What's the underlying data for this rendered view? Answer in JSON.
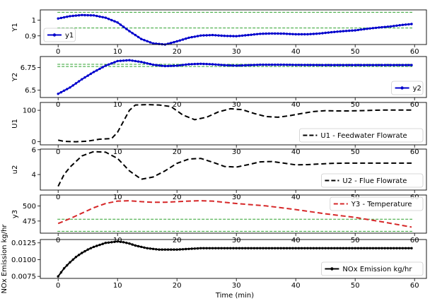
{
  "figure": {
    "xlabel": "Time (min)",
    "x_ticks": [
      0,
      10,
      20,
      30,
      40,
      50,
      60
    ],
    "xlim": [
      -3,
      62
    ]
  },
  "chart_data": [
    {
      "type": "line",
      "ylabel": "Y1",
      "ylim": [
        0.845,
        1.065
      ],
      "y_ticks": [
        0.9,
        1.0
      ],
      "legend": "bottom-left",
      "limits": [
        0.95,
        1.05
      ],
      "limit_color": "#2ca02c",
      "series": [
        {
          "name": "y1",
          "color": "#0000cc",
          "style": "solid-dot",
          "x": [
            0,
            2,
            4,
            6,
            8,
            10,
            12,
            14,
            16,
            18,
            20,
            22,
            24,
            26,
            28,
            30,
            32,
            34,
            36,
            38,
            40,
            42,
            44,
            46,
            48,
            50,
            52,
            54,
            56,
            58,
            59.5
          ],
          "y": [
            1.01,
            1.025,
            1.032,
            1.03,
            1.015,
            0.985,
            0.93,
            0.88,
            0.852,
            0.845,
            0.865,
            0.888,
            0.902,
            0.905,
            0.9,
            0.898,
            0.905,
            0.913,
            0.915,
            0.914,
            0.91,
            0.91,
            0.915,
            0.923,
            0.93,
            0.935,
            0.945,
            0.953,
            0.96,
            0.97,
            0.975
          ]
        }
      ]
    },
    {
      "type": "line",
      "ylabel": "Y2",
      "ylim": [
        6.42,
        6.87
      ],
      "y_ticks": [
        6.5,
        6.75
      ],
      "legend": "bottom-right",
      "limits": [
        6.76,
        6.785
      ],
      "limit_color": "#2ca02c",
      "series": [
        {
          "name": "y2",
          "color": "#0000cc",
          "style": "solid-dot",
          "x": [
            0,
            2,
            4,
            6,
            8,
            10,
            12,
            14,
            16,
            18,
            20,
            22,
            24,
            26,
            28,
            30,
            32,
            34,
            36,
            38,
            40,
            45,
            50,
            55,
            59.5
          ],
          "y": [
            6.46,
            6.53,
            6.62,
            6.7,
            6.77,
            6.82,
            6.83,
            6.81,
            6.78,
            6.765,
            6.77,
            6.785,
            6.79,
            6.785,
            6.775,
            6.77,
            6.775,
            6.78,
            6.78,
            6.78,
            6.778,
            6.776,
            6.776,
            6.776,
            6.776
          ]
        }
      ]
    },
    {
      "type": "line",
      "ylabel": "U1",
      "ylim": [
        -10,
        125
      ],
      "y_ticks": [
        0,
        100
      ],
      "legend": "bottom-right",
      "series": [
        {
          "name": "U1 - Feedwater Flowrate",
          "color": "#000000",
          "style": "dashed",
          "x": [
            0,
            1,
            3,
            5,
            7,
            9,
            10,
            11,
            12,
            13,
            15,
            17,
            19,
            21,
            23,
            25,
            27,
            29,
            31,
            33,
            35,
            37,
            39,
            41,
            43,
            45,
            47,
            49,
            51,
            53,
            55,
            57,
            59.5
          ],
          "y": [
            5,
            1,
            0,
            2,
            8,
            10,
            30,
            65,
            100,
            117,
            118,
            117,
            112,
            85,
            70,
            78,
            95,
            105,
            102,
            90,
            80,
            78,
            83,
            90,
            96,
            99,
            98,
            98,
            99,
            100,
            101,
            101,
            101
          ]
        }
      ]
    },
    {
      "type": "line",
      "ylabel": "u2",
      "ylim": [
        2.75,
        6.05
      ],
      "y_ticks": [
        4,
        6
      ],
      "legend": "bottom-right",
      "series": [
        {
          "name": "U2 - Flue Flowrate",
          "color": "#000000",
          "style": "dashed",
          "x": [
            0,
            1,
            2,
            4,
            6,
            8,
            10,
            12,
            14,
            16,
            18,
            20,
            22,
            24,
            26,
            28,
            30,
            32,
            34,
            36,
            38,
            40,
            42,
            44,
            46,
            48,
            50,
            52,
            54,
            56,
            59.5
          ],
          "y": [
            3.05,
            4.0,
            4.6,
            5.5,
            5.85,
            5.8,
            5.3,
            4.3,
            3.62,
            3.8,
            4.3,
            4.9,
            5.25,
            5.3,
            5.0,
            4.65,
            4.6,
            4.8,
            5.02,
            5.05,
            4.92,
            4.78,
            4.8,
            4.85,
            4.9,
            4.92,
            4.92,
            4.92,
            4.92,
            4.92,
            4.92
          ]
        }
      ]
    },
    {
      "type": "line",
      "ylabel": "y3",
      "ylim": [
        455,
        518
      ],
      "y_ticks": [
        475,
        500
      ],
      "legend": "top-right",
      "limits": [
        458,
        478
      ],
      "limit_color": "#2ca02c",
      "series": [
        {
          "name": "Y3 - Temperature",
          "color": "#d62728",
          "style": "dashed",
          "x": [
            0,
            2,
            4,
            6,
            8,
            10,
            12,
            14,
            16,
            18,
            20,
            22,
            24,
            26,
            28,
            30,
            35,
            40,
            45,
            50,
            55,
            59.5
          ],
          "y": [
            471,
            479,
            488,
            497,
            504,
            508,
            508.5,
            507,
            506,
            506,
            507,
            508,
            508.5,
            508,
            506,
            504,
            500,
            494,
            487,
            481,
            473,
            465
          ]
        }
      ]
    },
    {
      "type": "line",
      "ylabel": "NOx Emission kg/hr",
      "ylim": [
        0.0072,
        0.013
      ],
      "y_ticks": [
        0.0075,
        0.01,
        0.0125
      ],
      "y_tick_labels": [
        "0.0075",
        "0.0100",
        "0.0125"
      ],
      "legend": "bottom-right",
      "series": [
        {
          "name": "NOx Emission kg/hr",
          "color": "#000000",
          "style": "solid-dot",
          "x": [
            0,
            1,
            2,
            3,
            4,
            5,
            6,
            7,
            8,
            9,
            10,
            11,
            12,
            13,
            14,
            15,
            16,
            17,
            18,
            20,
            22,
            24,
            26,
            28,
            30,
            35,
            40,
            45,
            50,
            55,
            59.5
          ],
          "y": [
            0.0075,
            0.0087,
            0.0096,
            0.0104,
            0.011,
            0.0115,
            0.0119,
            0.0122,
            0.0125,
            0.0126,
            0.0127,
            0.0126,
            0.0124,
            0.0121,
            0.0119,
            0.0117,
            0.0116,
            0.0115,
            0.0115,
            0.0115,
            0.0116,
            0.0117,
            0.0117,
            0.0117,
            0.0117,
            0.0117,
            0.0117,
            0.0117,
            0.0117,
            0.0117,
            0.0117
          ]
        }
      ]
    }
  ]
}
